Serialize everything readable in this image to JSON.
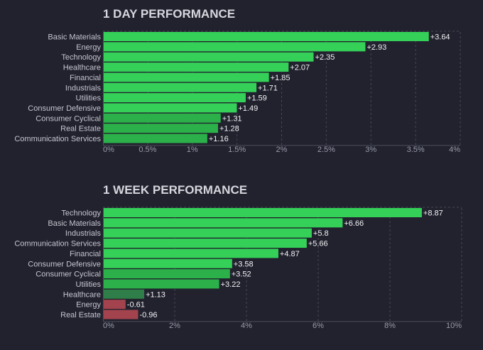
{
  "chart_data": [
    {
      "type": "bar",
      "orientation": "horizontal",
      "title": "1 DAY PERFORMANCE",
      "categories": [
        "Basic Materials",
        "Energy",
        "Technology",
        "Healthcare",
        "Financial",
        "Industrials",
        "Utilities",
        "Consumer Defensive",
        "Consumer Cyclical",
        "Real Estate",
        "Communication Services"
      ],
      "values": [
        3.64,
        2.93,
        2.35,
        2.07,
        1.85,
        1.71,
        1.59,
        1.49,
        1.31,
        1.28,
        1.16
      ],
      "value_labels": [
        "+3.64",
        "+2.93",
        "+2.35",
        "+2.07",
        "+1.85",
        "+1.71",
        "+1.59",
        "+1.49",
        "+1.31",
        "+1.28",
        "+1.16"
      ],
      "xlim": [
        0,
        4
      ],
      "ticks": [
        0,
        0.5,
        1,
        1.5,
        2,
        2.5,
        3,
        3.5,
        4
      ],
      "tick_labels": [
        "0%",
        "0.5%",
        "1%",
        "1.5%",
        "2%",
        "2.5%",
        "3%",
        "3.5%",
        "4%"
      ],
      "grid": true
    },
    {
      "type": "bar",
      "orientation": "horizontal",
      "title": "1 WEEK PERFORMANCE",
      "categories": [
        "Technology",
        "Basic Materials",
        "Industrials",
        "Communication Services",
        "Financial",
        "Consumer Defensive",
        "Consumer Cyclical",
        "Utilities",
        "Healthcare",
        "Energy",
        "Real Estate"
      ],
      "values": [
        8.87,
        6.66,
        5.8,
        5.66,
        4.87,
        3.58,
        3.52,
        3.22,
        1.13,
        -0.61,
        -0.96
      ],
      "value_labels": [
        "+8.87",
        "+6.66",
        "+5.8",
        "+5.66",
        "+4.87",
        "+3.58",
        "+3.52",
        "+3.22",
        "+1.13",
        "-0.61",
        "-0.96"
      ],
      "xlim": [
        0,
        10
      ],
      "ticks": [
        0,
        2,
        4,
        6,
        8,
        10
      ],
      "tick_labels": [
        "0%",
        "2%",
        "4%",
        "6%",
        "8%",
        "10%"
      ],
      "grid": true
    }
  ],
  "colors": {
    "background": "#22222e",
    "positive_strong": "#34d058",
    "positive_medium": "#2bb04a",
    "positive_weak": "#2f7d48",
    "negative": "#a3434d"
  }
}
